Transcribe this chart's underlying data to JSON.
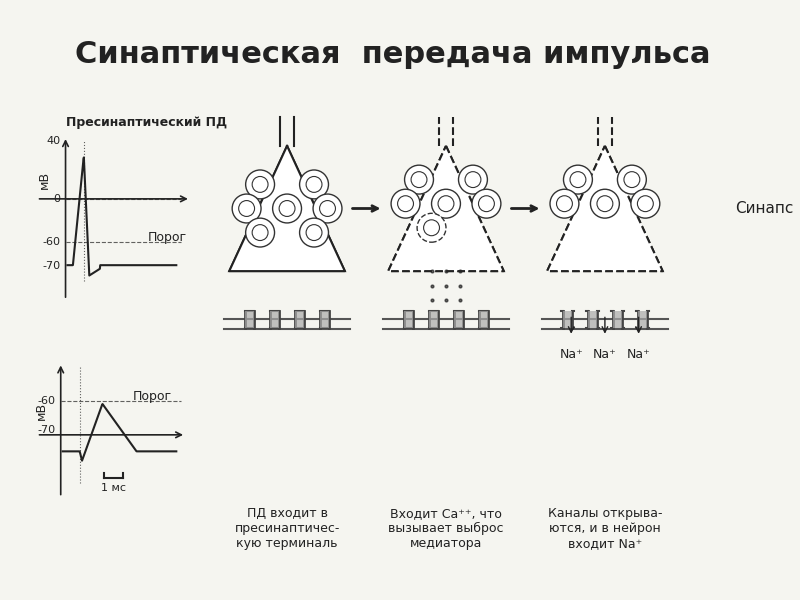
{
  "title": "Синаптическая  передача импульса",
  "title_fontsize": 22,
  "title_bold": true,
  "bg_color": "#f5f5f0",
  "line_color": "#222222",
  "label_presyn": "Пресинаптический ПД",
  "label_porog": "Порог",
  "label_mv": "мВ",
  "label_ms": "1 мс",
  "label_synapse": "Синапс",
  "label_pd_enter": "ПД входит в\nпресинаптичес-\nкую терминаль",
  "label_ca": "Входит Са⁺⁺, что\nвызывает выброс\nмедиатора",
  "label_na": "Каналы открыва-\nются, и в нейрон\nвходит Na⁺",
  "label_na_plus": [
    "Na⁺",
    "Na⁺",
    "Na⁺"
  ],
  "arrow_color": "#111111",
  "vesicle_color": "#dddddd",
  "vesicle_edge": "#333333",
  "membrane_color": "#555555",
  "channel_color": "#444444"
}
